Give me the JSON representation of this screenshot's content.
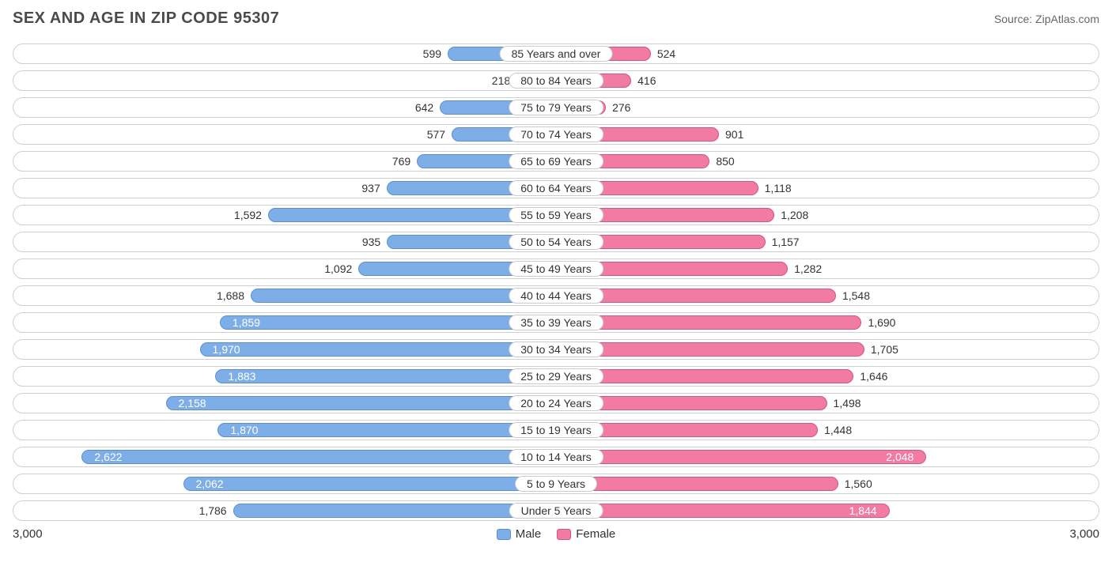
{
  "title": "SEX AND AGE IN ZIP CODE 95307",
  "source": "Source: ZipAtlas.com",
  "axis_max": 3000,
  "axis_left_label": "3,000",
  "axis_right_label": "3,000",
  "colors": {
    "male_fill": "#7eaee8",
    "male_border": "#5a8fd6",
    "female_fill": "#f27ba3",
    "female_border": "#d6547d",
    "row_border": "#d0d0d0",
    "background": "#ffffff",
    "text": "#333333",
    "title_text": "#4a4a4a",
    "source_text": "#666666"
  },
  "inside_threshold": 1800,
  "legend": {
    "male": "Male",
    "female": "Female"
  },
  "typography": {
    "title_fontsize": 20,
    "label_fontsize": 14,
    "axis_fontsize": 15
  },
  "rows": [
    {
      "category": "85 Years and over",
      "male": 599,
      "male_label": "599",
      "female": 524,
      "female_label": "524"
    },
    {
      "category": "80 to 84 Years",
      "male": 218,
      "male_label": "218",
      "female": 416,
      "female_label": "416"
    },
    {
      "category": "75 to 79 Years",
      "male": 642,
      "male_label": "642",
      "female": 276,
      "female_label": "276"
    },
    {
      "category": "70 to 74 Years",
      "male": 577,
      "male_label": "577",
      "female": 901,
      "female_label": "901"
    },
    {
      "category": "65 to 69 Years",
      "male": 769,
      "male_label": "769",
      "female": 850,
      "female_label": "850"
    },
    {
      "category": "60 to 64 Years",
      "male": 937,
      "male_label": "937",
      "female": 1118,
      "female_label": "1,118"
    },
    {
      "category": "55 to 59 Years",
      "male": 1592,
      "male_label": "1,592",
      "female": 1208,
      "female_label": "1,208"
    },
    {
      "category": "50 to 54 Years",
      "male": 935,
      "male_label": "935",
      "female": 1157,
      "female_label": "1,157"
    },
    {
      "category": "45 to 49 Years",
      "male": 1092,
      "male_label": "1,092",
      "female": 1282,
      "female_label": "1,282"
    },
    {
      "category": "40 to 44 Years",
      "male": 1688,
      "male_label": "1,688",
      "female": 1548,
      "female_label": "1,548"
    },
    {
      "category": "35 to 39 Years",
      "male": 1859,
      "male_label": "1,859",
      "female": 1690,
      "female_label": "1,690"
    },
    {
      "category": "30 to 34 Years",
      "male": 1970,
      "male_label": "1,970",
      "female": 1705,
      "female_label": "1,705"
    },
    {
      "category": "25 to 29 Years",
      "male": 1883,
      "male_label": "1,883",
      "female": 1646,
      "female_label": "1,646"
    },
    {
      "category": "20 to 24 Years",
      "male": 2158,
      "male_label": "2,158",
      "female": 1498,
      "female_label": "1,498"
    },
    {
      "category": "15 to 19 Years",
      "male": 1870,
      "male_label": "1,870",
      "female": 1448,
      "female_label": "1,448"
    },
    {
      "category": "10 to 14 Years",
      "male": 2622,
      "male_label": "2,622",
      "female": 2048,
      "female_label": "2,048"
    },
    {
      "category": "5 to 9 Years",
      "male": 2062,
      "male_label": "2,062",
      "female": 1560,
      "female_label": "1,560"
    },
    {
      "category": "Under 5 Years",
      "male": 1786,
      "male_label": "1,786",
      "female": 1844,
      "female_label": "1,844"
    }
  ]
}
